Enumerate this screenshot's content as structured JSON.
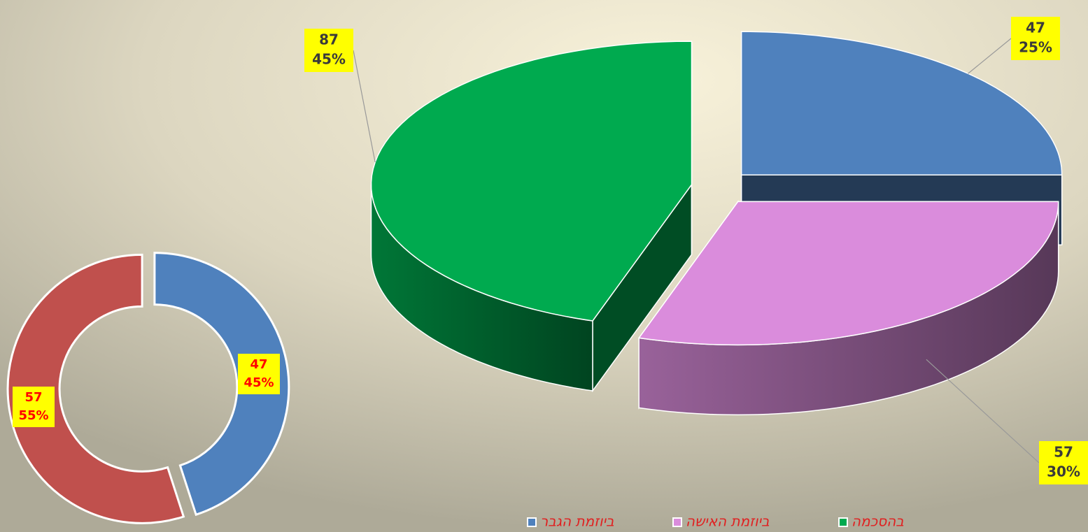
{
  "chart_data": [
    {
      "type": "pie3d",
      "categories": [
        "ביוזמת הגבר",
        "ביוזמת האישה",
        "בהסכמה"
      ],
      "counts": [
        47,
        57,
        87
      ],
      "values": [
        25,
        30,
        45
      ],
      "value_labels": [
        "25%",
        "30%",
        "45%"
      ],
      "colors": [
        "#4f81bd",
        "#da8cdc",
        "#00aa4f"
      ],
      "legend": "bottom"
    },
    {
      "type": "donut",
      "counts": [
        47,
        57
      ],
      "values": [
        45,
        55
      ],
      "value_labels": [
        "45%",
        "55%"
      ],
      "colors": [
        "#4f81bd",
        "#c0504d"
      ]
    }
  ]
}
